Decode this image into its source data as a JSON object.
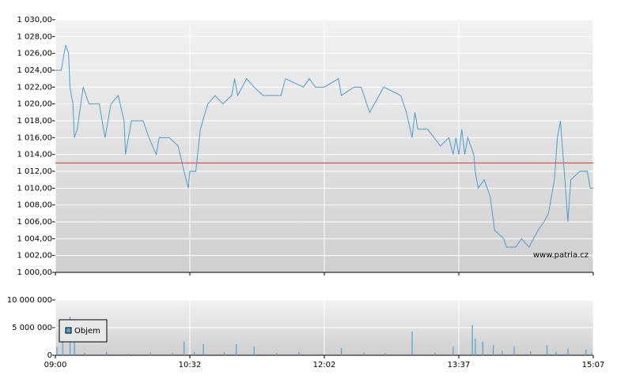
{
  "chart_data": [
    {
      "type": "line",
      "color": "#4a9fd1",
      "x": [
        "09:00",
        "09:04",
        "09:07",
        "09:09",
        "09:10",
        "09:12",
        "09:13",
        "09:15",
        "09:19",
        "09:23",
        "09:30",
        "09:34",
        "09:38",
        "09:43",
        "09:47",
        "09:48",
        "09:52",
        "10:00",
        "10:04",
        "10:09",
        "10:11",
        "10:18",
        "10:24",
        "10:28",
        "10:31",
        "10:32",
        "10:36",
        "10:39",
        "10:44",
        "10:49",
        "10:54",
        "11:00",
        "11:02",
        "11:04",
        "11:10",
        "11:15",
        "11:21",
        "11:33",
        "11:36",
        "11:48",
        "11:52",
        "11:56",
        "12:02",
        "12:12",
        "12:14",
        "12:23",
        "12:28",
        "12:34",
        "12:44",
        "12:56",
        "13:00",
        "13:04",
        "13:06",
        "13:08",
        "13:15",
        "13:24",
        "13:30",
        "13:33",
        "13:35",
        "13:37",
        "13:39",
        "13:41",
        "13:43",
        "13:47",
        "13:48",
        "13:50",
        "13:54",
        "13:58",
        "14:01",
        "14:07",
        "14:09",
        "14:15",
        "14:19",
        "14:24",
        "14:30",
        "14:34",
        "14:37",
        "14:41",
        "14:43",
        "14:45",
        "14:48",
        "14:50",
        "14:52",
        "14:58",
        "15:03",
        "15:05",
        "15:07"
      ],
      "values": [
        1024,
        1024,
        1027,
        1026,
        1022,
        1020,
        1016,
        1017,
        1022,
        1020,
        1020,
        1016,
        1020,
        1021,
        1018,
        1014,
        1018,
        1018,
        1016,
        1014,
        1016,
        1016,
        1015,
        1012,
        1010,
        1012,
        1012,
        1017,
        1020,
        1021,
        1020,
        1021,
        1023,
        1021,
        1023,
        1022,
        1021,
        1021,
        1023,
        1022,
        1023,
        1022,
        1022,
        1023,
        1021,
        1022,
        1022,
        1019,
        1022,
        1021,
        1019,
        1016,
        1019,
        1017,
        1017,
        1015,
        1016,
        1014,
        1016,
        1014,
        1017,
        1014,
        1016,
        1014,
        1012,
        1010,
        1011,
        1009,
        1005,
        1004,
        1003,
        1003,
        1004,
        1003,
        1005,
        1006,
        1007,
        1011,
        1016,
        1018,
        1011,
        1006,
        1011,
        1012,
        1012,
        1010,
        1010
      ],
      "reference_line": {
        "value": 1013,
        "color": "#d9341f"
      },
      "ylim": [
        1000,
        1030
      ],
      "yticks": [
        {
          "value": 1000,
          "label": "1 000,00"
        },
        {
          "value": 1002,
          "label": "1 002,00"
        },
        {
          "value": 1004,
          "label": "1 004,00"
        },
        {
          "value": 1006,
          "label": "1 006,00"
        },
        {
          "value": 1008,
          "label": "1 008,00"
        },
        {
          "value": 1010,
          "label": "1 010,00"
        },
        {
          "value": 1012,
          "label": "1 012,00"
        },
        {
          "value": 1014,
          "label": "1 014,00"
        },
        {
          "value": 1016,
          "label": "1 016,00"
        },
        {
          "value": 1018,
          "label": "1 018,00"
        },
        {
          "value": 1020,
          "label": "1 020,00"
        },
        {
          "value": 1022,
          "label": "1 022,00"
        },
        {
          "value": 1024,
          "label": "1 024,00"
        },
        {
          "value": 1026,
          "label": "1 026,00"
        },
        {
          "value": 1028,
          "label": "1 028,00"
        },
        {
          "value": 1030,
          "label": "1 030,00"
        }
      ],
      "grid": true,
      "watermark": "www.patria.cz"
    },
    {
      "type": "bar",
      "series": [
        {
          "name": "Objem",
          "color": "#4ca3d0",
          "x": [
            "09:01",
            "09:05",
            "09:10",
            "09:13",
            "09:20",
            "09:35",
            "09:50",
            "10:05",
            "10:20",
            "10:28",
            "10:35",
            "10:41",
            "10:55",
            "11:03",
            "11:15",
            "11:30",
            "11:45",
            "12:00",
            "12:14",
            "12:30",
            "12:45",
            "13:04",
            "13:20",
            "13:33",
            "13:46",
            "13:48",
            "13:53",
            "14:00",
            "14:06",
            "14:14",
            "14:25",
            "14:36",
            "14:42",
            "14:50",
            "15:02",
            "15:06"
          ],
          "values": [
            1500000,
            2500000,
            7000000,
            3000000,
            400000,
            600000,
            300000,
            500000,
            400000,
            2500000,
            600000,
            2000000,
            500000,
            2000000,
            1500000,
            400000,
            600000,
            300000,
            1300000,
            500000,
            400000,
            4300000,
            500000,
            1500000,
            5500000,
            3000000,
            2500000,
            1800000,
            800000,
            1500000,
            700000,
            1800000,
            600000,
            1200000,
            1000000,
            400000
          ]
        }
      ],
      "ylim": [
        0,
        10000000
      ],
      "yticks": [
        0,
        {
          "value": 5000000,
          "label": "5 000 000"
        },
        {
          "value": 10000000,
          "label": "10 000 000"
        }
      ],
      "xticks": [
        "09:00",
        "10:32",
        "12:02",
        "13:37",
        "15:07"
      ],
      "grid": true,
      "legend": "left"
    }
  ]
}
